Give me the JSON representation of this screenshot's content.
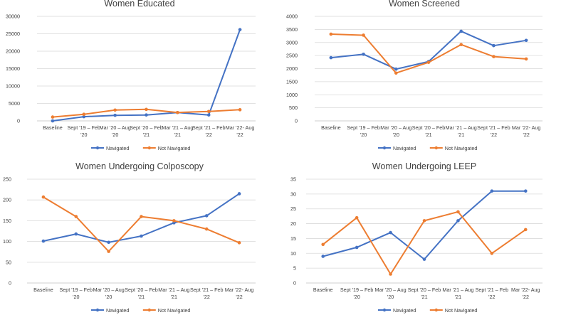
{
  "colors": {
    "navigated": "#4472C4",
    "not_navigated": "#ED7D31",
    "grid": "#d9d9d9",
    "axis": "#bfbfbf"
  },
  "chart_data": [
    {
      "type": "line",
      "title": "Women Educated",
      "categories": [
        [
          "Baseline"
        ],
        [
          "Sept '19 – Feb",
          "'20"
        ],
        [
          "Mar '20 – Aug",
          "'20"
        ],
        [
          "Sept '20 – Feb",
          "'21"
        ],
        [
          "Mar '21 – Aug",
          "'21"
        ],
        [
          "Sept '21 – Feb",
          "'22"
        ],
        [
          "Mar '22- Aug",
          "'22"
        ]
      ],
      "yticks": [
        0,
        5000,
        10000,
        15000,
        20000,
        25000,
        30000
      ],
      "ylim": [
        0,
        30000
      ],
      "series": [
        {
          "name": "Navigated",
          "values": [
            0,
            1200,
            1600,
            1700,
            2400,
            1700,
            26200
          ]
        },
        {
          "name": "Not Navigated",
          "values": [
            1100,
            1900,
            3100,
            3300,
            2400,
            2700,
            3200
          ]
        }
      ]
    },
    {
      "type": "line",
      "title": "Women Screened",
      "categories": [
        [
          "Baseline"
        ],
        [
          "Sept '19 – Feb",
          "'20"
        ],
        [
          "Mar '20 – Aug",
          "'20"
        ],
        [
          "Sept '20 – Feb",
          "'21"
        ],
        [
          "Mar '21 – Aug",
          "'21"
        ],
        [
          "Sept '21 – Feb",
          "'22"
        ],
        [
          "Mar '22- Aug",
          "'22"
        ]
      ],
      "yticks": [
        0,
        500,
        1000,
        1500,
        2000,
        2500,
        3000,
        3500,
        4000
      ],
      "ylim": [
        0,
        4000
      ],
      "series": [
        {
          "name": "Navigated",
          "values": [
            2420,
            2550,
            1980,
            2270,
            3430,
            2880,
            3080
          ]
        },
        {
          "name": "Not Navigated",
          "values": [
            3320,
            3280,
            1830,
            2240,
            2920,
            2460,
            2370
          ]
        }
      ]
    },
    {
      "type": "line",
      "title": "Women Undergoing Colposcopy",
      "categories": [
        [
          "Baseline"
        ],
        [
          "Sept '19 – Feb",
          "'20"
        ],
        [
          "Mar '20 – Aug",
          "'20"
        ],
        [
          "Sept '20 – Feb",
          "'21"
        ],
        [
          "Mar '21 – Aug",
          "'21"
        ],
        [
          "Sept '21 – Feb",
          "'22"
        ],
        [
          "Mar '22- Aug",
          "'22"
        ]
      ],
      "yticks": [
        0,
        50,
        100,
        150,
        200,
        250
      ],
      "ylim": [
        0,
        250
      ],
      "series": [
        {
          "name": "Navigated",
          "values": [
            101,
            118,
            98,
            113,
            145,
            162,
            215
          ]
        },
        {
          "name": "Not Navigated",
          "values": [
            207,
            160,
            76,
            160,
            150,
            130,
            97
          ]
        }
      ]
    },
    {
      "type": "line",
      "title": "Women Undergoing LEEP",
      "categories": [
        [
          "Baseline"
        ],
        [
          "Sept '19 – Feb",
          "'20"
        ],
        [
          "Mar '20 – Aug",
          "'20"
        ],
        [
          "Sept '20 – Feb",
          "'21"
        ],
        [
          "Mar '21 – Aug",
          "'21"
        ],
        [
          "Sept '21 – Feb",
          "'22"
        ],
        [
          "Mar '22- Aug",
          "'22"
        ]
      ],
      "yticks": [
        0,
        5,
        10,
        15,
        20,
        25,
        30,
        35
      ],
      "ylim": [
        0,
        35
      ],
      "series": [
        {
          "name": "Navigated",
          "values": [
            9,
            12,
            17,
            8,
            21,
            31,
            31
          ]
        },
        {
          "name": "Not Navigated",
          "values": [
            13,
            22,
            3,
            21,
            24,
            10,
            18
          ]
        }
      ]
    }
  ]
}
